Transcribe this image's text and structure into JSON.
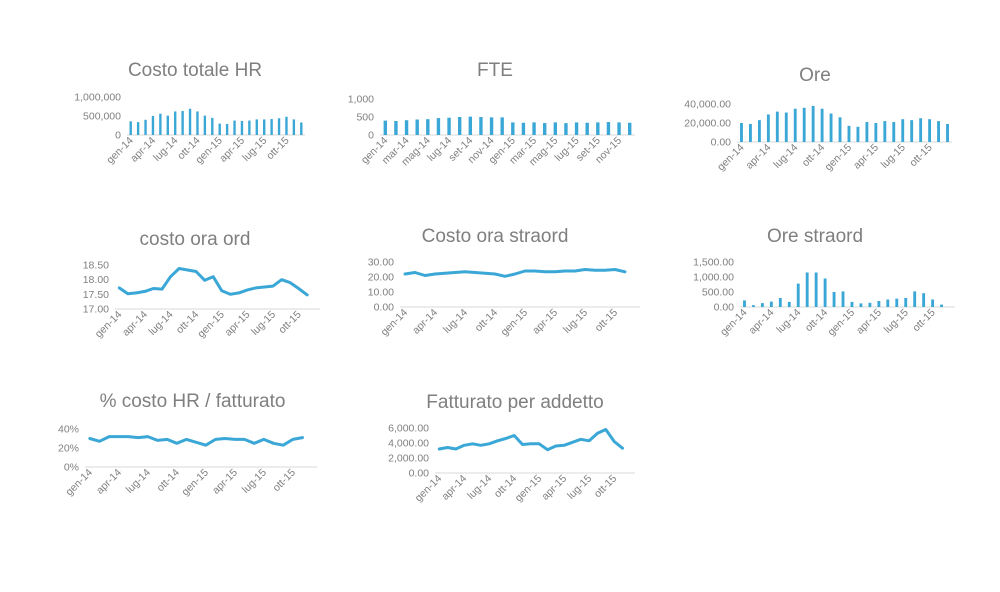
{
  "colors": {
    "series": "#3aa7d6",
    "axis": "#d9d9d9",
    "text": "#808080",
    "title": "#7f7f7f"
  },
  "chart_data": [
    {
      "id": "costo-totale-hr",
      "type": "bar",
      "title": "Costo totale HR",
      "ylim": [
        0,
        1000000
      ],
      "yticks": [
        0,
        500000,
        1000000
      ],
      "ytick_labels": [
        "0",
        "500,000",
        "1,000,000"
      ],
      "tick_labels": [
        "gen-14",
        "apr-14",
        "lug-14",
        "ott-14",
        "gen-15",
        "apr-15",
        "lug-15",
        "ott-15"
      ],
      "tick_every": 3,
      "categories": [
        "gen-14",
        "feb-14",
        "mar-14",
        "apr-14",
        "mag-14",
        "giu-14",
        "lug-14",
        "ago-14",
        "set-14",
        "ott-14",
        "nov-14",
        "dic-14",
        "gen-15",
        "feb-15",
        "mar-15",
        "apr-15",
        "mag-15",
        "giu-15",
        "lug-15",
        "ago-15",
        "set-15",
        "ott-15",
        "nov-15",
        "dic-15"
      ],
      "values": [
        360000,
        340000,
        400000,
        500000,
        560000,
        510000,
        620000,
        630000,
        690000,
        620000,
        510000,
        450000,
        300000,
        290000,
        380000,
        370000,
        380000,
        410000,
        410000,
        420000,
        440000,
        480000,
        410000,
        330000
      ]
    },
    {
      "id": "fte",
      "type": "bar",
      "title": "FTE",
      "ylim": [
        0,
        1000
      ],
      "yticks": [
        0,
        500,
        1000
      ],
      "ytick_labels": [
        "0",
        "500",
        "1,000"
      ],
      "tick_labels": [
        "gen-14",
        "mar-14",
        "mag-14",
        "lug-14",
        "set-14",
        "nov-14",
        "gen-15",
        "mar-15",
        "mag-15",
        "lug-15",
        "set-15",
        "nov-15"
      ],
      "tick_every": 2,
      "categories": [
        "gen-14",
        "feb-14",
        "mar-14",
        "apr-14",
        "mag-14",
        "giu-14",
        "lug-14",
        "ago-14",
        "set-14",
        "ott-14",
        "nov-14",
        "dic-14",
        "gen-15",
        "feb-15",
        "mar-15",
        "apr-15",
        "mag-15",
        "giu-15",
        "lug-15",
        "ago-15",
        "set-15",
        "ott-15",
        "nov-15",
        "dic-15"
      ],
      "values": [
        400,
        390,
        410,
        430,
        440,
        470,
        480,
        500,
        510,
        500,
        490,
        490,
        350,
        340,
        350,
        330,
        350,
        330,
        350,
        340,
        350,
        360,
        350,
        340
      ]
    },
    {
      "id": "ore",
      "type": "bar",
      "title": "Ore",
      "ylim": [
        0,
        40000
      ],
      "yticks": [
        0,
        20000,
        40000
      ],
      "ytick_labels": [
        "0.00",
        "20,000.00",
        "40,000.00"
      ],
      "tick_labels": [
        "gen-14",
        "apr-14",
        "lug-14",
        "ott-14",
        "gen-15",
        "apr-15",
        "lug-15",
        "ott-15"
      ],
      "tick_every": 3,
      "categories": [
        "gen-14",
        "feb-14",
        "mar-14",
        "apr-14",
        "mag-14",
        "giu-14",
        "lug-14",
        "ago-14",
        "set-14",
        "ott-14",
        "nov-14",
        "dic-14",
        "gen-15",
        "feb-15",
        "mar-15",
        "apr-15",
        "mag-15",
        "giu-15",
        "lug-15",
        "ago-15",
        "set-15",
        "ott-15",
        "nov-15",
        "dic-15"
      ],
      "values": [
        20000,
        19000,
        23000,
        29000,
        32000,
        31000,
        35000,
        36000,
        38000,
        35000,
        30000,
        26000,
        17000,
        16000,
        21000,
        20000,
        22000,
        21000,
        24000,
        23000,
        25000,
        24000,
        22000,
        19000
      ]
    },
    {
      "id": "costo-ora-ord",
      "type": "line",
      "title": "costo ora ord",
      "ylim": [
        17,
        18.5
      ],
      "yticks": [
        17,
        17.5,
        18,
        18.5
      ],
      "ytick_labels": [
        "17.00",
        "17.50",
        "18.00",
        "18.50"
      ],
      "tick_labels": [
        "gen-14",
        "apr-14",
        "lug-14",
        "ott-14",
        "gen-15",
        "apr-15",
        "lug-15",
        "ott-15"
      ],
      "tick_every": 3,
      "categories": [
        "gen-14",
        "feb-14",
        "mar-14",
        "apr-14",
        "mag-14",
        "giu-14",
        "lug-14",
        "ago-14",
        "set-14",
        "ott-14",
        "nov-14",
        "dic-14",
        "gen-15",
        "feb-15",
        "mar-15",
        "apr-15",
        "mag-15",
        "giu-15",
        "lug-15",
        "ago-15",
        "set-15",
        "ott-15",
        "nov-15",
        "dic-15"
      ],
      "values": [
        17.72,
        17.52,
        17.55,
        17.6,
        17.7,
        17.68,
        18.1,
        18.38,
        18.33,
        18.28,
        17.98,
        18.1,
        17.62,
        17.5,
        17.55,
        17.65,
        17.72,
        17.75,
        17.78,
        18.0,
        17.9,
        17.7,
        17.48,
        null
      ]
    },
    {
      "id": "costo-ora-straord",
      "type": "line",
      "title": "Costo ora straord",
      "ylim": [
        0,
        30
      ],
      "yticks": [
        0,
        10,
        20,
        30
      ],
      "ytick_labels": [
        "0.00",
        "10.00",
        "20.00",
        "30.00"
      ],
      "tick_labels": [
        "gen-14",
        "apr-14",
        "lug-14",
        "ott-14",
        "gen-15",
        "apr-15",
        "lug-15",
        "ott-15"
      ],
      "tick_every": 3,
      "categories": [
        "gen-14",
        "feb-14",
        "mar-14",
        "apr-14",
        "mag-14",
        "giu-14",
        "lug-14",
        "ago-14",
        "set-14",
        "ott-14",
        "nov-14",
        "dic-14",
        "gen-15",
        "feb-15",
        "mar-15",
        "apr-15",
        "mag-15",
        "giu-15",
        "lug-15",
        "ago-15",
        "set-15",
        "ott-15",
        "nov-15",
        "dic-15"
      ],
      "values": [
        22,
        23,
        21,
        22,
        22.5,
        23,
        23.5,
        23,
        22.5,
        22,
        20.5,
        22,
        24,
        24,
        23.5,
        23.5,
        24,
        24,
        25,
        24.5,
        24.5,
        25,
        23.5,
        null
      ]
    },
    {
      "id": "ore-straord",
      "type": "bar",
      "title": "Ore straord",
      "ylim": [
        0,
        1500
      ],
      "yticks": [
        0,
        500,
        1000,
        1500
      ],
      "ytick_labels": [
        "0.00",
        "500.00",
        "1,000.00",
        "1,500.00"
      ],
      "tick_labels": [
        "gen-14",
        "apr-14",
        "lug-14",
        "ott-14",
        "gen-15",
        "apr-15",
        "lug-15",
        "ott-15"
      ],
      "tick_every": 3,
      "categories": [
        "gen-14",
        "feb-14",
        "mar-14",
        "apr-14",
        "mag-14",
        "giu-14",
        "lug-14",
        "ago-14",
        "set-14",
        "ott-14",
        "nov-14",
        "dic-14",
        "gen-15",
        "feb-15",
        "mar-15",
        "apr-15",
        "mag-15",
        "giu-15",
        "lug-15",
        "ago-15",
        "set-15",
        "ott-15",
        "nov-15",
        "dic-15"
      ],
      "values": [
        220,
        60,
        130,
        180,
        300,
        170,
        780,
        1150,
        1150,
        950,
        500,
        520,
        170,
        120,
        140,
        200,
        250,
        280,
        300,
        520,
        460,
        250,
        80,
        0
      ]
    },
    {
      "id": "costo-hr-fatturato",
      "type": "line",
      "title": "% costo HR / fatturato",
      "ylim": [
        0,
        40
      ],
      "yticks": [
        0,
        20,
        40
      ],
      "ytick_labels": [
        "0%",
        "20%",
        "40%"
      ],
      "tick_labels": [
        "gen-14",
        "apr-14",
        "lug-14",
        "ott-14",
        "gen-15",
        "apr-15",
        "lug-15",
        "ott-15"
      ],
      "tick_every": 3,
      "categories": [
        "gen-14",
        "feb-14",
        "mar-14",
        "apr-14",
        "mag-14",
        "giu-14",
        "lug-14",
        "ago-14",
        "set-14",
        "ott-14",
        "nov-14",
        "dic-14",
        "gen-15",
        "feb-15",
        "mar-15",
        "apr-15",
        "mag-15",
        "giu-15",
        "lug-15",
        "ago-15",
        "set-15",
        "ott-15",
        "nov-15",
        "dic-15"
      ],
      "values": [
        30,
        27,
        32,
        32,
        32,
        31,
        32,
        28,
        29,
        25,
        29,
        26,
        23,
        29,
        30,
        29,
        29,
        25,
        29,
        25,
        23,
        29,
        31,
        null
      ]
    },
    {
      "id": "fatturato-per-addetto",
      "type": "line",
      "title": "Fatturato per addetto",
      "ylim": [
        0,
        6000
      ],
      "yticks": [
        0,
        2000,
        4000,
        6000
      ],
      "ytick_labels": [
        "0.00",
        "2,000.00",
        "4,000.00",
        "6,000.00"
      ],
      "tick_labels": [
        "gen-14",
        "apr-14",
        "lug-14",
        "ott-14",
        "gen-15",
        "apr-15",
        "lug-15",
        "ott-15"
      ],
      "tick_every": 3,
      "categories": [
        "gen-14",
        "feb-14",
        "mar-14",
        "apr-14",
        "mag-14",
        "giu-14",
        "lug-14",
        "ago-14",
        "set-14",
        "ott-14",
        "nov-14",
        "dic-14",
        "gen-15",
        "feb-15",
        "mar-15",
        "apr-15",
        "mag-15",
        "giu-15",
        "lug-15",
        "ago-15",
        "set-15",
        "ott-15",
        "nov-15",
        "dic-15"
      ],
      "values": [
        3200,
        3400,
        3200,
        3700,
        3900,
        3700,
        3900,
        4300,
        4600,
        5000,
        3800,
        3900,
        3900,
        3100,
        3600,
        3700,
        4100,
        4500,
        4300,
        5300,
        5800,
        4200,
        3300,
        null
      ]
    }
  ]
}
